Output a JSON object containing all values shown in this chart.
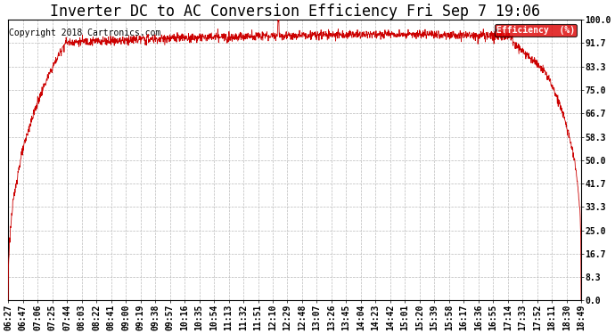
{
  "title": "Inverter DC to AC Conversion Efficiency Fri Sep 7 19:06",
  "copyright": "Copyright 2018 Cartronics.com",
  "legend_label": "Efficiency  (%)",
  "legend_bg": "#dd0000",
  "legend_fg": "#ffffff",
  "line_color": "#cc0000",
  "background_color": "#ffffff",
  "plot_bg": "#ffffff",
  "grid_color": "#bbbbbb",
  "yticks": [
    0.0,
    8.3,
    16.7,
    25.0,
    33.3,
    41.7,
    50.0,
    58.3,
    66.7,
    75.0,
    83.3,
    91.7,
    100.0
  ],
  "ylabel_color": "#000000",
  "xlabel_color": "#000000",
  "title_color": "#000000",
  "title_fontsize": 12,
  "copyright_fontsize": 7,
  "tick_fontsize": 7,
  "xtick_labels": [
    "06:27",
    "06:47",
    "07:06",
    "07:25",
    "07:44",
    "08:03",
    "08:22",
    "08:41",
    "09:00",
    "09:19",
    "09:38",
    "09:57",
    "10:16",
    "10:35",
    "10:54",
    "11:13",
    "11:32",
    "11:51",
    "12:10",
    "12:29",
    "12:48",
    "13:07",
    "13:26",
    "13:45",
    "14:04",
    "14:23",
    "14:42",
    "15:01",
    "15:20",
    "15:39",
    "15:58",
    "16:17",
    "16:36",
    "16:55",
    "17:14",
    "17:33",
    "17:52",
    "18:11",
    "18:30",
    "18:49"
  ],
  "ylim": [
    0.0,
    100.0
  ],
  "n_points": 2000
}
